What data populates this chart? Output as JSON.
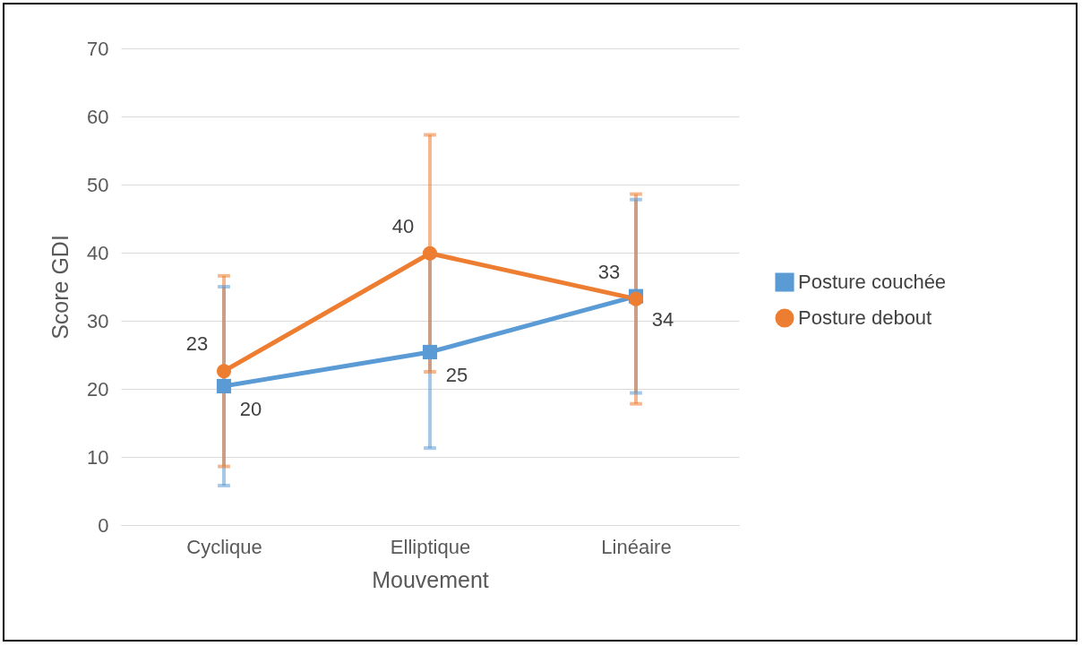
{
  "chart_data": {
    "type": "line",
    "xlabel": "Mouvement",
    "ylabel": "Score GDI",
    "categories": [
      "Cyclique",
      "Elliptique",
      "Linéaire"
    ],
    "ylim": [
      0,
      70
    ],
    "yticks": [
      0,
      10,
      20,
      30,
      40,
      50,
      60,
      70
    ],
    "grid": "y",
    "legend": "right",
    "line_style": "solid",
    "series": [
      {
        "name": "Posture couchée",
        "color": "#5b9bd5",
        "marker": "square",
        "values": [
          20.4,
          25.4,
          33.6
        ],
        "errors": [
          14.6,
          14.1,
          14.2
        ],
        "value_labels": [
          "20",
          "25",
          "34"
        ]
      },
      {
        "name": "Posture debout",
        "color": "#ed7d31",
        "marker": "circle",
        "values": [
          22.6,
          39.9,
          33.2
        ],
        "errors": [
          14,
          17.4,
          15.4
        ],
        "value_labels": [
          "23",
          "40",
          "33"
        ]
      }
    ]
  }
}
